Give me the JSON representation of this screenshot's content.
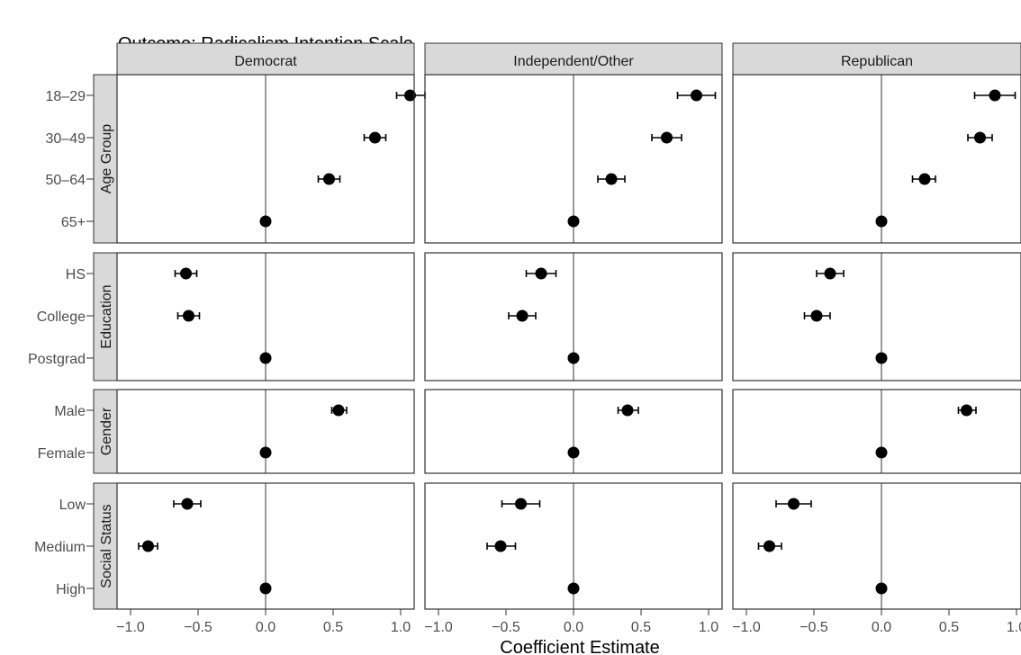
{
  "chart_data": {
    "type": "scatter",
    "title": "Outcome: Radicalism Intention Scale",
    "xlabel": "Coefficient Estimate",
    "ylabel": "",
    "xlim": [
      -1.1,
      1.1
    ],
    "x_ticks": [
      "-1.0",
      "-0.5",
      "0.0",
      "0.5",
      "1.0"
    ],
    "x_tick_values": [
      -1.0,
      -0.5,
      0.0,
      0.5,
      1.0
    ],
    "grid": false,
    "reference_line_x": 0,
    "point_color": "#000000",
    "strip_fill": "#d9d9d9",
    "zero_line_color": "#808080",
    "facet_columns": [
      "Democrat",
      "Independent/Other",
      "Republican"
    ],
    "facet_rows": [
      {
        "label": "Age Group",
        "levels": [
          "18–29",
          "30–49",
          "50–64",
          "65+"
        ]
      },
      {
        "label": "Education",
        "levels": [
          "HS",
          "College",
          "Postgrad"
        ]
      },
      {
        "label": "Gender",
        "levels": [
          "Male",
          "Female"
        ]
      },
      {
        "label": "Social Status",
        "levels": [
          "Low",
          "Medium",
          "High"
        ]
      }
    ],
    "estimates": [
      [
        [
          {
            "est": 1.07,
            "lo": 0.97,
            "hi": 1.18
          },
          {
            "est": 0.81,
            "lo": 0.73,
            "hi": 0.89
          },
          {
            "est": 0.47,
            "lo": 0.39,
            "hi": 0.55
          },
          {
            "est": 0.0,
            "lo": 0.0,
            "hi": 0.0
          }
        ],
        [
          {
            "est": -0.59,
            "lo": -0.67,
            "hi": -0.51
          },
          {
            "est": -0.57,
            "lo": -0.65,
            "hi": -0.49
          },
          {
            "est": 0.0,
            "lo": 0.0,
            "hi": 0.0
          }
        ],
        [
          {
            "est": 0.54,
            "lo": 0.49,
            "hi": 0.6
          },
          {
            "est": 0.0,
            "lo": 0.0,
            "hi": 0.0
          }
        ],
        [
          {
            "est": -0.58,
            "lo": -0.68,
            "hi": -0.48
          },
          {
            "est": -0.87,
            "lo": -0.94,
            "hi": -0.8
          },
          {
            "est": 0.0,
            "lo": 0.0,
            "hi": 0.0
          }
        ]
      ],
      [
        [
          {
            "est": 0.91,
            "lo": 0.77,
            "hi": 1.05
          },
          {
            "est": 0.69,
            "lo": 0.58,
            "hi": 0.8
          },
          {
            "est": 0.28,
            "lo": 0.18,
            "hi": 0.38
          },
          {
            "est": 0.0,
            "lo": 0.0,
            "hi": 0.0
          }
        ],
        [
          {
            "est": -0.24,
            "lo": -0.35,
            "hi": -0.13
          },
          {
            "est": -0.38,
            "lo": -0.48,
            "hi": -0.28
          },
          {
            "est": 0.0,
            "lo": 0.0,
            "hi": 0.0
          }
        ],
        [
          {
            "est": 0.4,
            "lo": 0.33,
            "hi": 0.48
          },
          {
            "est": 0.0,
            "lo": 0.0,
            "hi": 0.0
          }
        ],
        [
          {
            "est": -0.39,
            "lo": -0.53,
            "hi": -0.25
          },
          {
            "est": -0.54,
            "lo": -0.64,
            "hi": -0.43
          },
          {
            "est": 0.0,
            "lo": 0.0,
            "hi": 0.0
          }
        ]
      ],
      [
        [
          {
            "est": 0.84,
            "lo": 0.69,
            "hi": 0.99
          },
          {
            "est": 0.73,
            "lo": 0.64,
            "hi": 0.82
          },
          {
            "est": 0.32,
            "lo": 0.23,
            "hi": 0.4
          },
          {
            "est": 0.0,
            "lo": 0.0,
            "hi": 0.0
          }
        ],
        [
          {
            "est": -0.38,
            "lo": -0.48,
            "hi": -0.28
          },
          {
            "est": -0.48,
            "lo": -0.57,
            "hi": -0.38
          },
          {
            "est": 0.0,
            "lo": 0.0,
            "hi": 0.0
          }
        ],
        [
          {
            "est": 0.63,
            "lo": 0.57,
            "hi": 0.7
          },
          {
            "est": 0.0,
            "lo": 0.0,
            "hi": 0.0
          }
        ],
        [
          {
            "est": -0.65,
            "lo": -0.78,
            "hi": -0.52
          },
          {
            "est": -0.83,
            "lo": -0.91,
            "hi": -0.74
          },
          {
            "est": 0.0,
            "lo": 0.0,
            "hi": 0.0
          }
        ]
      ]
    ]
  }
}
